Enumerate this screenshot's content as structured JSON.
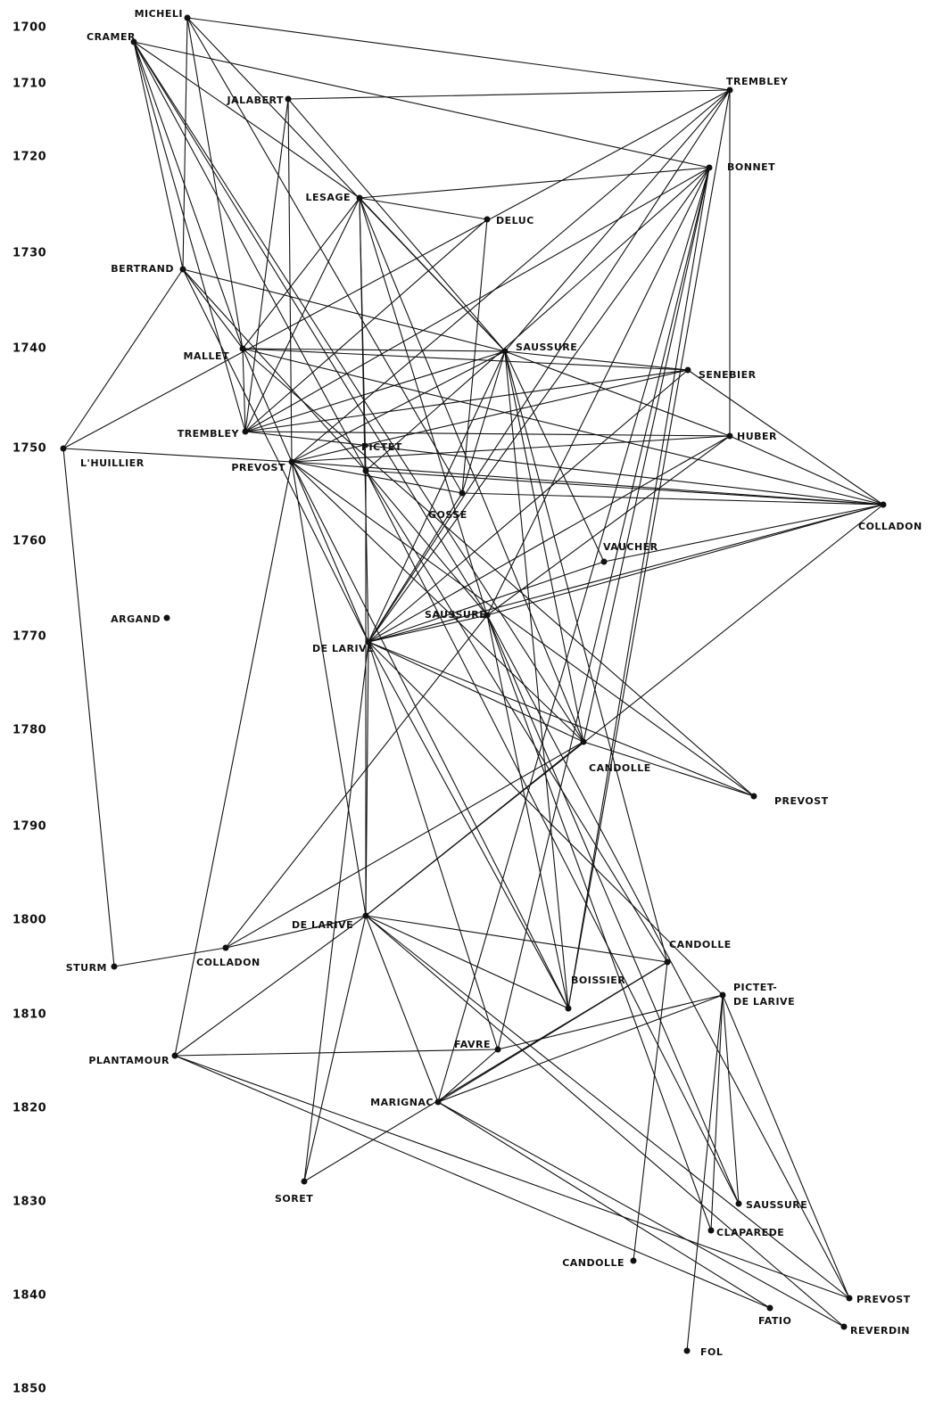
{
  "years": [
    "1700",
    "1710",
    "1720",
    "1730",
    "1740",
    "1750",
    "1760",
    "1770",
    "1780",
    "1790",
    "1800",
    "1810",
    "1820",
    "1830",
    "1840",
    "1850"
  ],
  "nodes": [
    "MICHELI",
    "CRAMER",
    "JALABERT",
    "TREMBLEY",
    "BONNET",
    "LESAGE",
    "DELUC",
    "BERTRAND",
    "MALLET",
    "SAUSSURE",
    "SENEBIER",
    "TREMBLEY",
    "HUBER",
    "L'HUILLIER",
    "PREVOST",
    "PICTET",
    "GOSSE",
    "COLLADON",
    "VAUCHER",
    "ARGAND",
    "SAUSSURE",
    "DE LARIVE",
    "CANDOLLE",
    "PREVOST",
    "DE LARIVE",
    "COLLADON",
    "STURM",
    "CANDOLLE",
    [
      "PICTET-",
      "DE LARIVE"
    ],
    "BOISSIER",
    "FAVRE",
    "PLANTAMOUR",
    "MARIGNAC",
    "SORET",
    "SAUSSURE",
    "CLAPAREDE",
    "CANDOLLE",
    "PREVOST",
    "FATIO",
    "REVERDIN",
    "FOL"
  ]
}
